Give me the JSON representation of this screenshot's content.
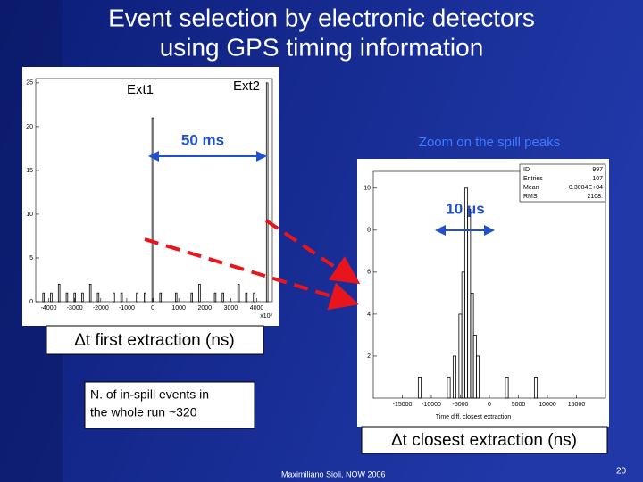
{
  "title": {
    "lines": [
      "Event selection by electronic detectors",
      "using GPS timing information"
    ]
  },
  "left_plot": {
    "labels": {
      "ext1": "Ext1",
      "ext2": "Ext2",
      "span": "50 ms",
      "multiplier": "x10³"
    },
    "xlim": [
      -4500,
      4600
    ],
    "ylim": [
      0,
      25.5
    ],
    "xticks": [
      -4000,
      -3000,
      -2000,
      -1000,
      0,
      1000,
      2000,
      3000,
      4000
    ],
    "yticks": [
      0,
      5,
      10,
      15,
      20,
      25
    ],
    "bin_width": 60,
    "bars": [
      {
        "x": -4200,
        "count": 1
      },
      {
        "x": -3900,
        "count": 1
      },
      {
        "x": -3600,
        "count": 2
      },
      {
        "x": -3300,
        "count": 1
      },
      {
        "x": -3000,
        "count": 1
      },
      {
        "x": -2700,
        "count": 1
      },
      {
        "x": -2400,
        "count": 2
      },
      {
        "x": -2100,
        "count": 1
      },
      {
        "x": -1500,
        "count": 1
      },
      {
        "x": -1200,
        "count": 1
      },
      {
        "x": -600,
        "count": 1
      },
      {
        "x": -300,
        "count": 1
      },
      {
        "x": 0,
        "count": 21
      },
      {
        "x": 300,
        "count": 1
      },
      {
        "x": 900,
        "count": 1
      },
      {
        "x": 1500,
        "count": 1
      },
      {
        "x": 1800,
        "count": 2
      },
      {
        "x": 2400,
        "count": 1
      },
      {
        "x": 2700,
        "count": 1
      },
      {
        "x": 3300,
        "count": 2
      },
      {
        "x": 3600,
        "count": 1
      },
      {
        "x": 3900,
        "count": 1
      },
      {
        "x": 4400,
        "count": 25
      }
    ]
  },
  "right_plot": {
    "heading": "Zoom on the spill peaks",
    "span": "10 μs",
    "axis_title": "Time diff. closest extraction",
    "stats": [
      [
        "ID",
        "997"
      ],
      [
        "Entries",
        "107"
      ],
      [
        "Mean",
        "-0.3004E+04"
      ],
      [
        "RMS",
        "2108."
      ]
    ],
    "xlim": [
      -20000,
      20000
    ],
    "ylim": [
      0,
      10.8
    ],
    "xticks": [
      -15000,
      -10000,
      -5000,
      0,
      5000,
      10000,
      15000
    ],
    "yticks": [
      2,
      4,
      6,
      8,
      10
    ],
    "bin_width": 500,
    "bars": [
      {
        "x": -12000,
        "count": 1
      },
      {
        "x": -7000,
        "count": 1
      },
      {
        "x": -6000,
        "count": 2
      },
      {
        "x": -5000,
        "count": 4
      },
      {
        "x": -4500,
        "count": 6
      },
      {
        "x": -4000,
        "count": 10
      },
      {
        "x": -3500,
        "count": 9
      },
      {
        "x": -3000,
        "count": 5
      },
      {
        "x": -2500,
        "count": 3
      },
      {
        "x": -2000,
        "count": 2
      },
      {
        "x": 3000,
        "count": 1
      },
      {
        "x": 8000,
        "count": 1
      }
    ]
  },
  "boxes": {
    "first_extraction": "Δt first extraction (ns)",
    "events": [
      "N. of in-spill events in",
      "the whole run ~320"
    ],
    "closest_extraction": "Δt closest extraction (ns)"
  },
  "footer": {
    "author": "Maximiliano Sioli, NOW 2006",
    "page": "20"
  }
}
